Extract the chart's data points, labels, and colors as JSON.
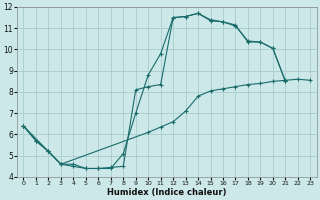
{
  "xlabel": "Humidex (Indice chaleur)",
  "bg_color": "#cce8e8",
  "grid_color": "#aacccc",
  "line_color": "#1a6b6b",
  "xlim": [
    -0.5,
    23.5
  ],
  "ylim": [
    4,
    12
  ],
  "xticks": [
    0,
    1,
    2,
    3,
    4,
    5,
    6,
    7,
    8,
    9,
    10,
    11,
    12,
    13,
    14,
    15,
    16,
    17,
    18,
    19,
    20,
    21,
    22,
    23
  ],
  "yticks": [
    4,
    5,
    6,
    7,
    8,
    9,
    10,
    11,
    12
  ],
  "series": [
    {
      "x": [
        0,
        1,
        2,
        3,
        4,
        5,
        6,
        7,
        8,
        9,
        10,
        11,
        12,
        13,
        14,
        15,
        16,
        17,
        18,
        19,
        20,
        21
      ],
      "y": [
        6.4,
        5.7,
        5.2,
        4.6,
        4.5,
        4.4,
        4.4,
        4.4,
        5.1,
        7.0,
        8.8,
        9.8,
        11.5,
        11.55,
        11.7,
        11.35,
        11.3,
        11.1,
        10.4,
        10.35,
        10.05,
        8.5
      ]
    },
    {
      "x": [
        0,
        2,
        3,
        4,
        5,
        6,
        7,
        8,
        9,
        10,
        11,
        12,
        13,
        14,
        15,
        16,
        17,
        18,
        19,
        20,
        21
      ],
      "y": [
        6.4,
        5.2,
        4.6,
        4.6,
        4.4,
        4.4,
        4.45,
        4.5,
        8.1,
        8.25,
        8.35,
        11.5,
        11.55,
        11.7,
        11.4,
        11.3,
        11.15,
        10.35,
        10.35,
        10.05,
        8.5
      ]
    },
    {
      "x": [
        0,
        1,
        2,
        3,
        10,
        11,
        12,
        13,
        14,
        15,
        16,
        17,
        18,
        19,
        20,
        21,
        22,
        23
      ],
      "y": [
        6.4,
        5.7,
        5.2,
        4.6,
        6.1,
        6.35,
        6.6,
        7.1,
        7.8,
        8.05,
        8.15,
        8.25,
        8.35,
        8.4,
        8.5,
        8.55,
        8.6,
        8.55
      ]
    }
  ]
}
